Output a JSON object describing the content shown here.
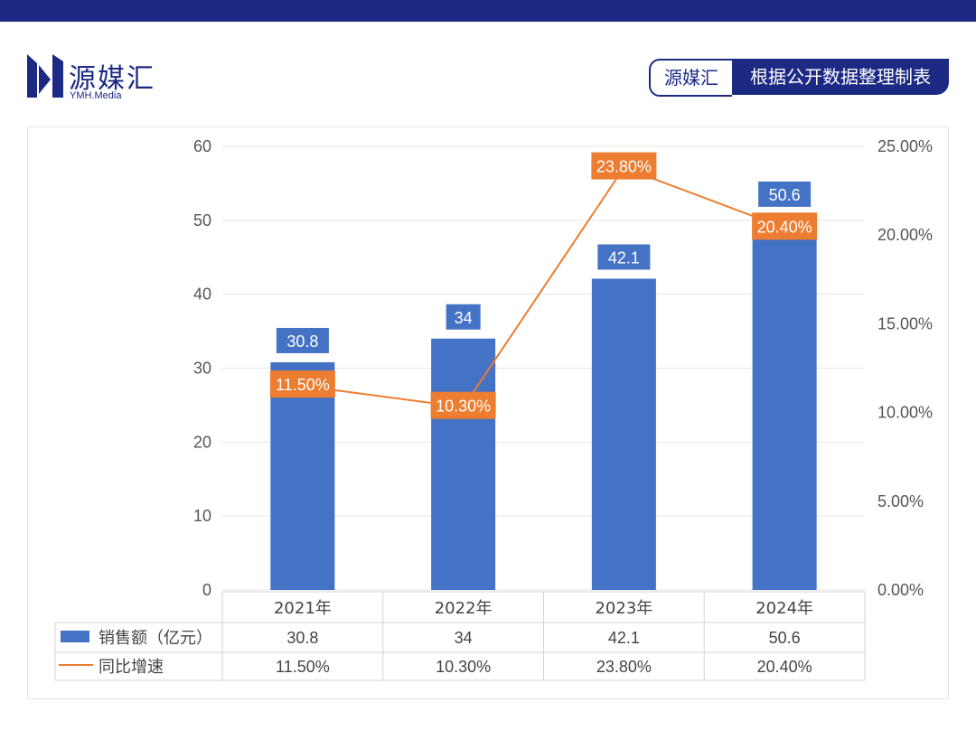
{
  "header": {
    "logo_cn": "源媒汇",
    "logo_en": "YMH.Media",
    "source_brand": "源媒汇",
    "source_note": "根据公开数据整理制表"
  },
  "colors": {
    "bar": "#4472c4",
    "line": "#ed7d31",
    "navy": "#1c2a84"
  },
  "chart_data": {
    "type": "bar",
    "categories": [
      "2021年",
      "2022年",
      "2023年",
      "2024年"
    ],
    "series": [
      {
        "name": "销售额（亿元）",
        "type": "bar",
        "axis": "left",
        "values": [
          30.8,
          34,
          42.1,
          50.6
        ],
        "labels": [
          "30.8",
          "34",
          "42.1",
          "50.6"
        ]
      },
      {
        "name": "同比增速",
        "type": "line",
        "axis": "right",
        "values": [
          11.5,
          10.3,
          23.8,
          20.4
        ],
        "labels": [
          "11.50%",
          "10.30%",
          "23.80%",
          "20.40%"
        ]
      }
    ],
    "y_left": {
      "min": 0,
      "max": 60,
      "ticks": [
        "0",
        "10",
        "20",
        "30",
        "40",
        "50",
        "60"
      ]
    },
    "y_right": {
      "min": 0,
      "max": 25,
      "ticks": [
        "0.00%",
        "5.00%",
        "10.00%",
        "15.00%",
        "20.00%",
        "25.00%"
      ]
    },
    "grid": true,
    "legend": "data-table-below"
  }
}
